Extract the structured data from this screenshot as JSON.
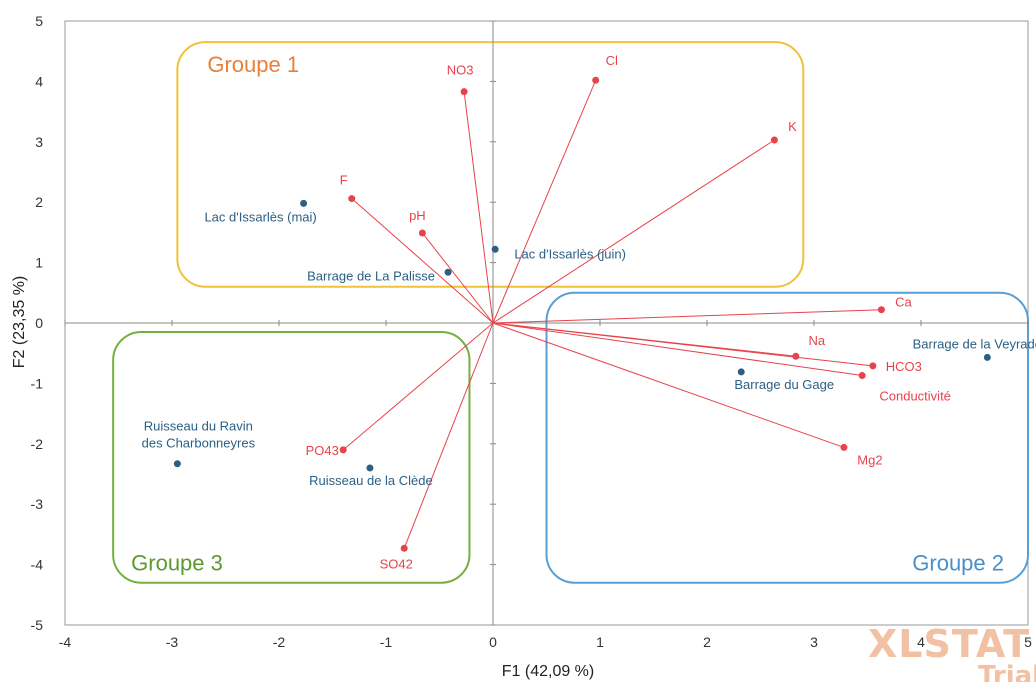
{
  "watermark": {
    "brand": "XLSTAT",
    "sub": "Trial"
  },
  "chart_data": {
    "type": "scatter",
    "subtype": "pca-biplot",
    "xlabel": "F1 (42,09 %)",
    "ylabel": "F2 (23,35 %)",
    "xlim": [
      -4,
      5
    ],
    "ylim": [
      -5,
      5
    ],
    "x_ticks": [
      -4,
      -3,
      -2,
      -1,
      0,
      1,
      2,
      3,
      4,
      5
    ],
    "y_ticks": [
      -5,
      -4,
      -3,
      -2,
      -1,
      0,
      1,
      2,
      3,
      4,
      5
    ],
    "grid": false,
    "variable_color": "#e8434a",
    "observation_color": "#2b5f84",
    "variables": [
      {
        "name": "NO3",
        "x": -0.27,
        "y": 3.83
      },
      {
        "name": "Cl",
        "x": 0.96,
        "y": 4.02
      },
      {
        "name": "K",
        "x": 2.63,
        "y": 3.03
      },
      {
        "name": "F",
        "x": -1.32,
        "y": 2.06
      },
      {
        "name": "pH",
        "x": -0.66,
        "y": 1.49
      },
      {
        "name": "Ca",
        "x": 3.63,
        "y": 0.22
      },
      {
        "name": "Na",
        "x": 2.83,
        "y": -0.55
      },
      {
        "name": "HCO3",
        "x": 3.55,
        "y": -0.71
      },
      {
        "name": "Conductivité",
        "x": 3.45,
        "y": -0.87
      },
      {
        "name": "Mg2",
        "x": 3.28,
        "y": -2.06
      },
      {
        "name": "PO43",
        "x": -1.4,
        "y": -2.1
      },
      {
        "name": "SO42",
        "x": -0.83,
        "y": -3.73
      }
    ],
    "observations": [
      {
        "name": "Lac d'Issarlès (mai)",
        "x": -1.77,
        "y": 1.98
      },
      {
        "name": "Lac d'Issarlès (juin)",
        "x": 0.02,
        "y": 1.22
      },
      {
        "name": "Barrage de La Palisse",
        "x": -0.42,
        "y": 0.84
      },
      {
        "name": "Barrage de la Veyradeyre",
        "x": 4.62,
        "y": -0.57
      },
      {
        "name": "Barrage du Gage",
        "x": 2.32,
        "y": -0.81
      },
      {
        "name": "Ruisseau du Ravin des Charbonneyres",
        "x": -2.95,
        "y": -2.33
      },
      {
        "name": "Ruisseau de la Clède",
        "x": -1.15,
        "y": -2.4
      }
    ],
    "groups": [
      {
        "name": "Groupe 1",
        "color": "#f0c23a",
        "label_color": "#e8803a",
        "x_range": [
          -2.95,
          2.9
        ],
        "y_range": [
          0.6,
          4.65
        ],
        "label_corner": "top-left"
      },
      {
        "name": "Groupe 2",
        "color": "#5a9fd4",
        "label_color": "#4a8fc8",
        "x_range": [
          0.5,
          5.0
        ],
        "y_range": [
          -4.3,
          0.5
        ],
        "label_corner": "bottom-right"
      },
      {
        "name": "Groupe 3",
        "color": "#76b041",
        "label_color": "#5c9a2e",
        "x_range": [
          -3.55,
          -0.22
        ],
        "y_range": [
          -4.3,
          -0.15
        ],
        "label_corner": "bottom-left"
      }
    ]
  }
}
